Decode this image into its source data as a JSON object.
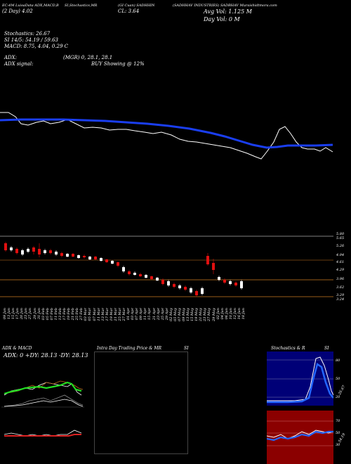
{
  "header": {
    "col1_line1": "EC:4M LuisaData ADX,MACD,B",
    "col1_line2": "(2 Day)",
    "col1_value": "4.02",
    "col2_line1": "SI,Stochastics,MR",
    "col3_line1": "(GI Cuan) SADHHIN",
    "col3_line2": "CL:",
    "col3_value": "3.64",
    "col4_line1": "(SADHHAV INDUSTRIES) SADBHAV",
    "col4_line1_tail": "Muraishidtmora.com",
    "avg_vol": "Avg Vol: 1.125  M",
    "day_vol": "Day Vol: 0  M"
  },
  "indicators": {
    "stochastics": "Stochastics: 26.67",
    "si": "SI 14/5: 54.19 / 59.63",
    "macd": "MACD: 8.75,  4.04,  0.29 C",
    "adx": "ADX:",
    "mgr": "(MGR) 0,  28.1,  28.1",
    "adx_signal": "ADX  signal:",
    "buy_showing": "BUY Showing @ 12%"
  },
  "price_axis": [
    "5.80",
    "5.65",
    "5.26",
    "4.94",
    "4.61",
    "4.29",
    "3.96",
    "3.62",
    "3.29",
    "3.24"
  ],
  "date_labels": [
    "09 Jan",
    "13 Jan",
    "15 Jan",
    "17 Jan",
    "20 Jan",
    "23 Jan",
    "27 Jan",
    "29 Jan",
    "31 Jan",
    "03 Feb",
    "05 Feb",
    "07 Feb",
    "11 Feb",
    "13 Feb",
    "17 Feb",
    "19 Feb",
    "21 Feb",
    "25 Feb",
    "27 Feb",
    "03 Mar",
    "05 Mar",
    "07 Mar",
    "11 Mar",
    "13 Mar",
    "17 Mar",
    "19 Mar",
    "21 Mar",
    "25 Mar",
    "27 Mar",
    "01 Apr",
    "03 Apr",
    "07 Apr",
    "09 Apr",
    "11 Apr",
    "15 Apr",
    "21 Apr",
    "23 Apr",
    "25 Apr",
    "29 Apr",
    "02 May",
    "05 May",
    "07 May",
    "09 May",
    "13 May",
    "15 May",
    "19 May",
    "21 May",
    "23 May",
    "27 May",
    "29 May",
    "02 Jun",
    "04 Jun",
    "06 Jun",
    "10 Jun",
    "12 Jun",
    "16 Jun",
    "18 Jun"
  ],
  "panels": {
    "adx_macd": {
      "title": "ADX  & MACD",
      "readout": "ADX: 0  +DY: 28.13  -DY: 28.13"
    },
    "intraday": {
      "title": "Intra  Day Trading Price  & MR",
      "title_right": "SI"
    },
    "stochastics": {
      "title": "Stochastics & R",
      "title_right": "SI",
      "axis_top": [
        "80",
        "50",
        "20"
      ],
      "axis_top_value": "26.67",
      "axis_bottom": [
        "70",
        "50",
        "30"
      ],
      "axis_bottom_value": "54.19"
    }
  },
  "colors": {
    "background": "#000000",
    "ma_line": "#1a3ef0",
    "bull": "#ffffff",
    "bear": "#e01010",
    "level": "#cc7a22",
    "navy": "#000077",
    "maroon": "#8b0000"
  }
}
